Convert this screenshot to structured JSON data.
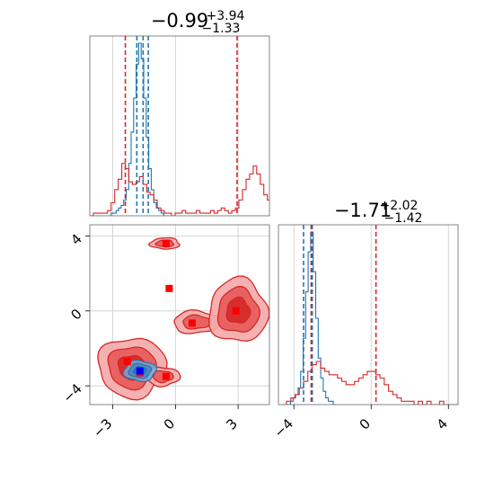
{
  "chart_data": [
    {
      "id": "marginal-x",
      "type": "histogram",
      "title": {
        "main": "−0.99",
        "sup": "+3.94",
        "sub": "−1.33"
      },
      "x_range": [
        -4.1,
        4.5
      ],
      "grid": true,
      "series": [
        {
          "name": "",
          "color": "#1f77b4",
          "bin_start": -3.2,
          "bin_width": 0.12,
          "counts": [
            0,
            1,
            1,
            2,
            3,
            4,
            6,
            10,
            20,
            32,
            45,
            58,
            66,
            60,
            45,
            30,
            18,
            10,
            5,
            3,
            2,
            1,
            0
          ]
        },
        {
          "name": "",
          "color": "#d62728",
          "bin_start": -4.1,
          "bin_width": 0.17,
          "counts": [
            0,
            1,
            1,
            1,
            1,
            2,
            5,
            10,
            14,
            20,
            18,
            13,
            12,
            13,
            15,
            12,
            9,
            8,
            6,
            3,
            2,
            1,
            1,
            0,
            1,
            1,
            2,
            1,
            1,
            1,
            2,
            1,
            1,
            1,
            2,
            1,
            2,
            3,
            2,
            1,
            2,
            3,
            6,
            10,
            14,
            16,
            19,
            16,
            12,
            8,
            6,
            4,
            3,
            2,
            2,
            1,
            1
          ]
        }
      ],
      "quantiles": [
        {
          "color": "#1f77b4",
          "values": [
            -1.85,
            -1.55,
            -1.3
          ]
        },
        {
          "color": "#d62728",
          "values": [
            -2.4,
            2.95
          ]
        }
      ]
    },
    {
      "id": "joint",
      "type": "contour",
      "x_range": [
        -4.1,
        4.5
      ],
      "y_range": [
        -5.0,
        4.6
      ],
      "xticks": [
        "−3",
        "0",
        "3"
      ],
      "xtick_values": [
        -3,
        0,
        3
      ],
      "yticks": [
        "−4",
        "0",
        "4"
      ],
      "ytick_values": [
        -4,
        0,
        4
      ],
      "grid": true,
      "red_modes": [
        {
          "x": -2.3,
          "y": -2.7
        },
        {
          "x": -1.7,
          "y": -3.3
        },
        {
          "x": -0.45,
          "y": -3.5
        },
        {
          "x": 0.8,
          "y": -0.65
        },
        {
          "x": 2.9,
          "y": 0.0
        },
        {
          "x": -0.3,
          "y": 1.2
        },
        {
          "x": -0.45,
          "y": 3.6
        }
      ],
      "blue_modes": [
        {
          "x": -1.7,
          "y": -3.2
        }
      ]
    },
    {
      "id": "marginal-y",
      "type": "histogram",
      "title": {
        "main": "−1.71",
        "sup": "+2.02",
        "sub": "−1.42"
      },
      "x_range": [
        -4.8,
        4.5
      ],
      "xticks": [
        "−4",
        "0",
        "4"
      ],
      "xtick_values": [
        -4,
        0,
        4
      ],
      "grid": true,
      "series": [
        {
          "name": "",
          "color": "#1f77b4",
          "bin_start": -4.3,
          "bin_width": 0.13,
          "counts": [
            0,
            1,
            2,
            3,
            5,
            10,
            20,
            34,
            46,
            52,
            40,
            26,
            14,
            8,
            4,
            2,
            1,
            1,
            0
          ]
        },
        {
          "name": "",
          "color": "#d62728",
          "bin_start": -4.6,
          "bin_width": 0.22,
          "counts": [
            0,
            1,
            2,
            3,
            5,
            7,
            10,
            12,
            13,
            11,
            10,
            9,
            9,
            8,
            7,
            6,
            6,
            7,
            8,
            9,
            10,
            10,
            9,
            8,
            6,
            4,
            3,
            2,
            1,
            1,
            1,
            0,
            1,
            0,
            1,
            0,
            0,
            1,
            0,
            0,
            0,
            0
          ]
        }
      ],
      "quantiles": [
        {
          "color": "#1f77b4",
          "values": [
            -3.5,
            -3.1,
            -3.05
          ]
        },
        {
          "color": "#d62728",
          "values": [
            -3.1,
            0.25
          ]
        }
      ]
    }
  ]
}
